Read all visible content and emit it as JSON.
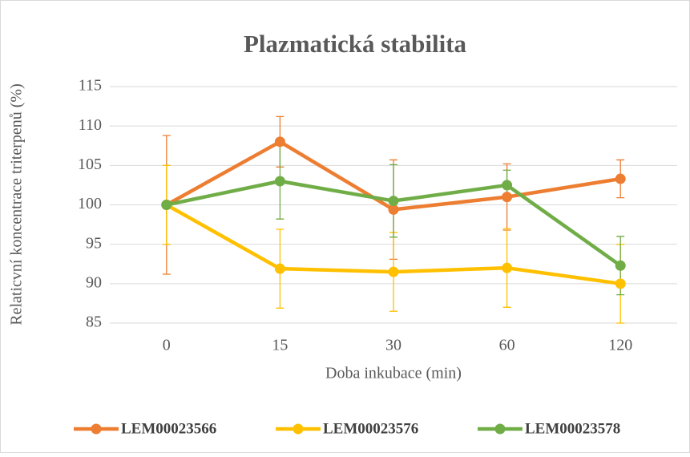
{
  "chart_data": {
    "type": "line",
    "title": "Plazmatická stabilita",
    "x_label": "Doba inkubace (min)",
    "y_label": "Relaticvní koncentrace triterpenů (%)",
    "categories": [
      "0",
      "15",
      "30",
      "60",
      "120"
    ],
    "series": [
      {
        "name": "LEM00023566",
        "color": "#ED7D31",
        "values": [
          100,
          108,
          99.4,
          101,
          103.3
        ],
        "errors": [
          8.8,
          3.2,
          6.3,
          4.2,
          2.4
        ]
      },
      {
        "name": "LEM00023576",
        "color": "#FFC000",
        "values": [
          100,
          91.9,
          91.5,
          92,
          90
        ],
        "errors": [
          5,
          5,
          5,
          5,
          5
        ]
      },
      {
        "name": "LEM00023578",
        "color": "#70AD47",
        "values": [
          100,
          103,
          100.5,
          102.5,
          92.3
        ],
        "errors": [
          0,
          4.8,
          4.6,
          1.9,
          3.7
        ]
      }
    ],
    "ylim": [
      85,
      115
    ],
    "yticks": [
      85,
      90,
      95,
      100,
      105,
      110,
      115
    ],
    "grid": true,
    "legend": "bottom"
  }
}
